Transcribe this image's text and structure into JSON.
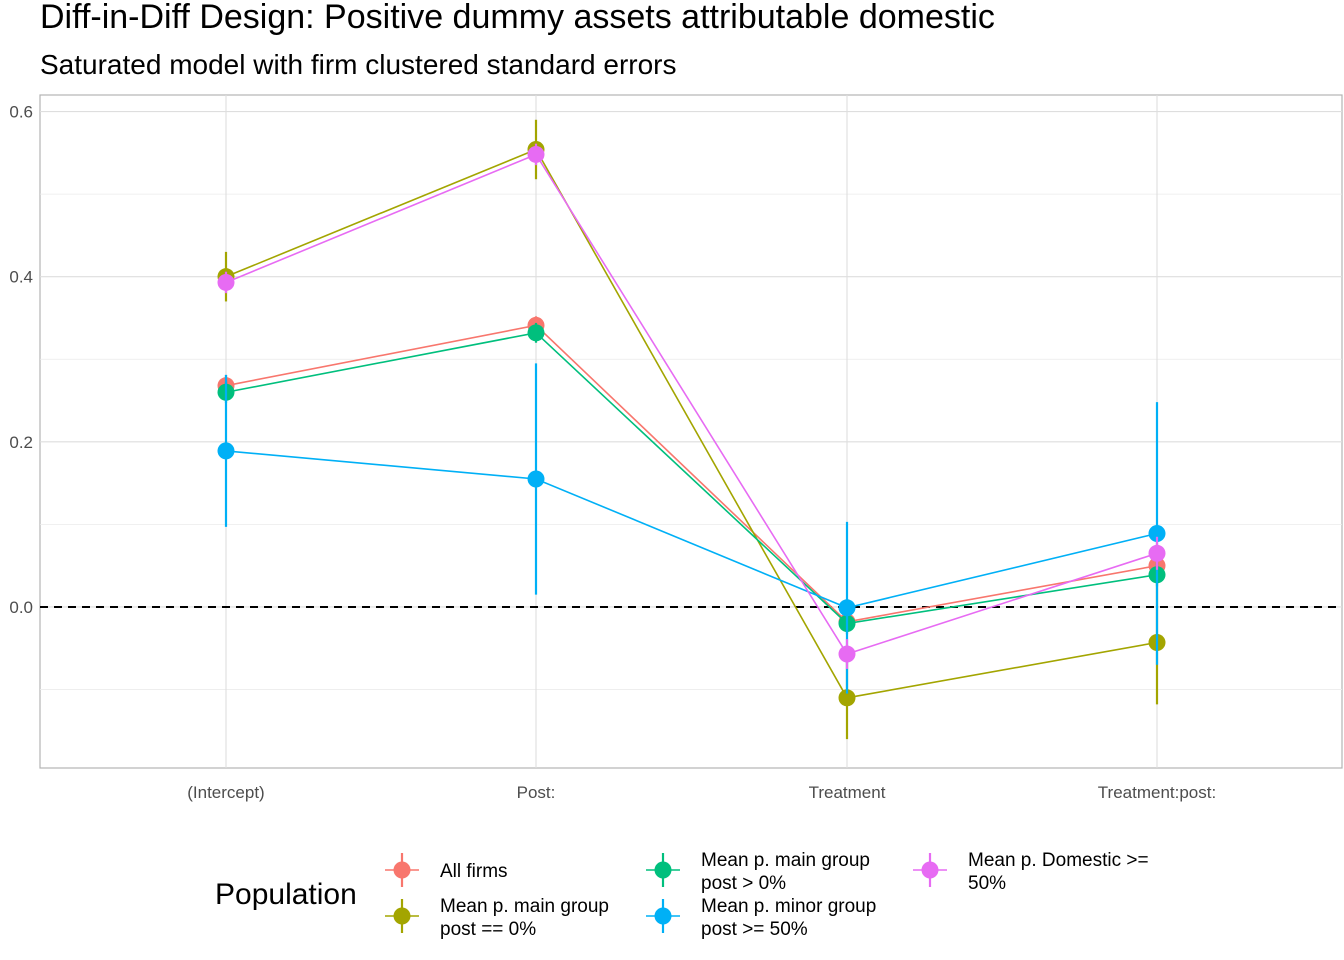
{
  "chart_data": {
    "type": "scatter",
    "title": "Diff-in-Diff Design: Positive dummy assets attributable domestic",
    "subtitle": "Saturated model with firm clustered standard errors",
    "xlabel": "",
    "ylabel": "",
    "categories": [
      "(Intercept)",
      "Post:",
      "Treatment",
      "Treatment:post:"
    ],
    "y_ticks": [
      0.0,
      0.2,
      0.4,
      0.6
    ],
    "y_tick_labels": [
      "0.0",
      "0.2",
      "0.4",
      "0.6"
    ],
    "ylim": [
      -0.195,
      0.62
    ],
    "grid": true,
    "reference_line": 0,
    "legend_title": "Population",
    "legend_position": "bottom",
    "series": [
      {
        "label_lines": [
          "All firms"
        ],
        "color": "#F8766D",
        "values": [
          0.268,
          0.341,
          -0.018,
          0.05
        ],
        "ci_low": [
          0.255,
          0.33,
          -0.03,
          0.035
        ],
        "ci_high": [
          0.281,
          0.352,
          -0.006,
          0.065
        ]
      },
      {
        "label_lines": [
          "Mean p. main group",
          "post == 0%"
        ],
        "color": "#A3A500",
        "values": [
          0.4,
          0.554,
          -0.11,
          -0.043
        ],
        "ci_low": [
          0.37,
          0.518,
          -0.16,
          -0.118
        ],
        "ci_high": [
          0.43,
          0.59,
          -0.06,
          0.032
        ]
      },
      {
        "label_lines": [
          "Mean p. main group",
          "post > 0%"
        ],
        "color": "#00BF7D",
        "values": [
          0.26,
          0.332,
          -0.02,
          0.039
        ],
        "ci_low": [
          0.247,
          0.32,
          -0.033,
          0.025
        ],
        "ci_high": [
          0.273,
          0.344,
          -0.007,
          0.053
        ]
      },
      {
        "label_lines": [
          "Mean p. minor group",
          "post >= 50%"
        ],
        "color": "#00B0F6",
        "values": [
          0.189,
          0.155,
          -0.001,
          0.089
        ],
        "ci_low": [
          0.097,
          0.015,
          -0.105,
          -0.07
        ],
        "ci_high": [
          0.281,
          0.295,
          0.103,
          0.248
        ]
      },
      {
        "label_lines": [
          "Mean p. Domestic >=",
          "50%"
        ],
        "color": "#E76BF3",
        "values": [
          0.393,
          0.548,
          -0.057,
          0.065
        ],
        "ci_low": [
          0.38,
          0.535,
          -0.075,
          0.045
        ],
        "ci_high": [
          0.406,
          0.561,
          -0.039,
          0.085
        ]
      }
    ]
  }
}
